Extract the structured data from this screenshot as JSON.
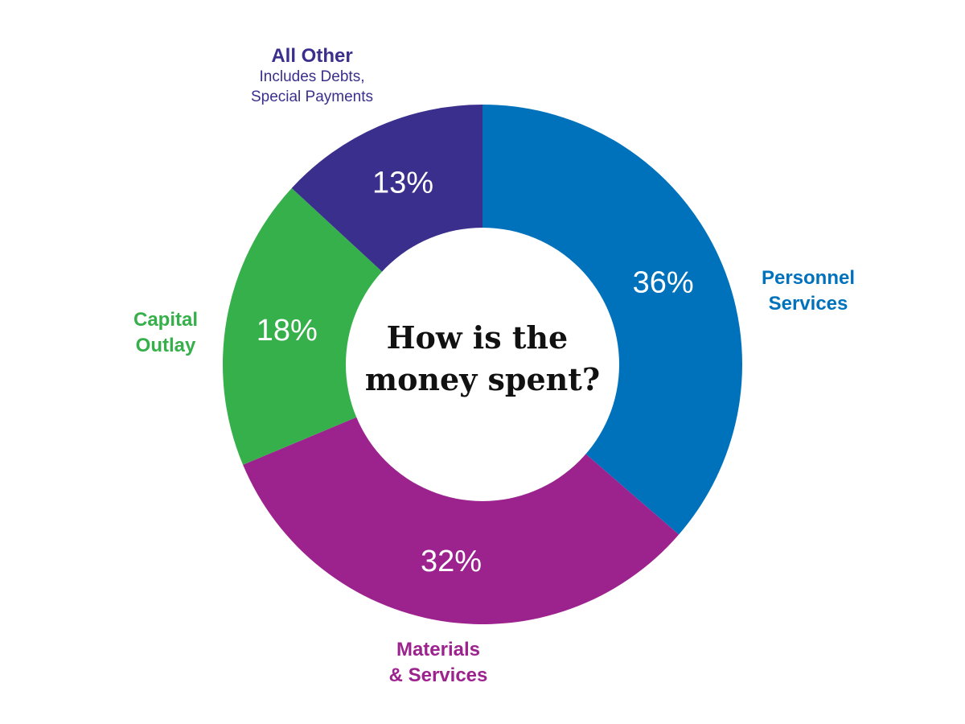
{
  "chart_data": {
    "type": "pie",
    "style": "donut",
    "center_title": [
      "How is the",
      "money spent?"
    ],
    "slices": [
      {
        "name": "Personnel Services",
        "label_lines": [
          "Personnel",
          "Services"
        ],
        "sub_lines": [],
        "value": 36,
        "value_label": "36%",
        "color": "#0072BC"
      },
      {
        "name": "Materials & Services",
        "label_lines": [
          "Materials",
          "& Services"
        ],
        "sub_lines": [],
        "value": 32,
        "value_label": "32%",
        "color": "#9C238E"
      },
      {
        "name": "Capital Outlay",
        "label_lines": [
          "Capital",
          "Outlay"
        ],
        "sub_lines": [],
        "value": 18,
        "value_label": "18%",
        "color": "#36B04A"
      },
      {
        "name": "All Other",
        "label_lines": [
          "All Other"
        ],
        "sub_lines": [
          "Includes Debts,",
          "Special Payments"
        ],
        "value": 13,
        "value_label": "13%",
        "color": "#3A2F8C"
      }
    ]
  }
}
